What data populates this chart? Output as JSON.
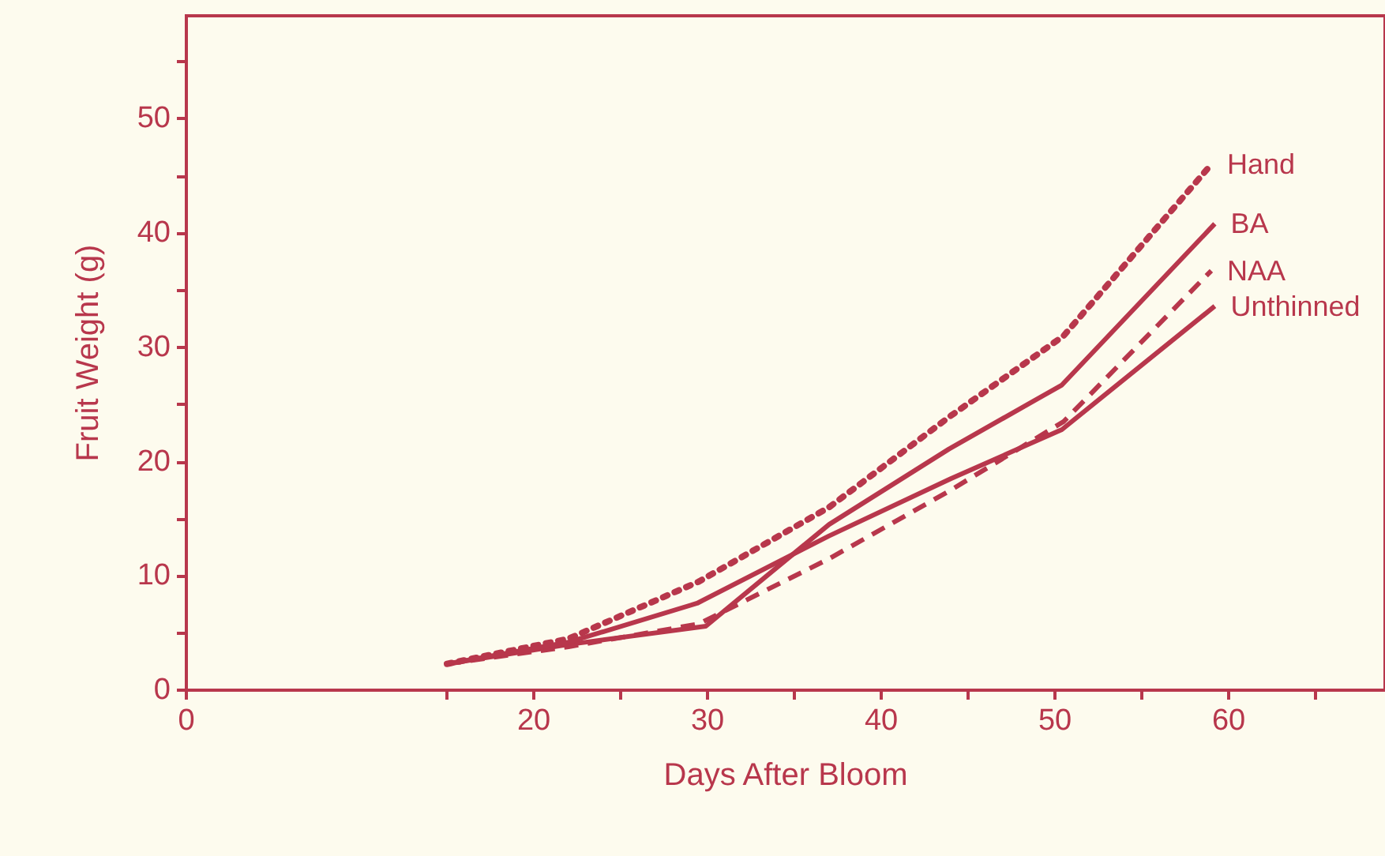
{
  "chart_data": {
    "type": "line",
    "xlabel": "Days After Bloom",
    "ylabel": "Fruit Weight (g)",
    "xlim": [
      0,
      69
    ],
    "ylim": [
      0,
      59
    ],
    "xticks": [
      0,
      {
        "value": 15,
        "label": null
      },
      20,
      {
        "value": 25,
        "label": null
      },
      30,
      {
        "value": 35,
        "label": null
      },
      40,
      {
        "value": 45,
        "label": null
      },
      50,
      {
        "value": 55,
        "label": null
      },
      60,
      {
        "value": 65,
        "label": null
      }
    ],
    "yticks": [
      0,
      {
        "value": 5,
        "label": null
      },
      10,
      {
        "value": 15,
        "label": null
      },
      20,
      {
        "value": 25,
        "label": null
      },
      30,
      {
        "value": 35,
        "label": null
      },
      40,
      {
        "value": 45,
        "label": null
      },
      50,
      {
        "value": 55,
        "label": null
      }
    ],
    "grid": false,
    "legend": false,
    "marker": "none",
    "series": [
      {
        "name": "Hand",
        "color": "#b8374c",
        "line_style": "dotted",
        "x": [
          15,
          22,
          29.5,
          37,
          44,
          50.5,
          59
        ],
        "values": [
          2.3,
          4.5,
          9.5,
          16,
          24,
          31,
          46
        ]
      },
      {
        "name": "BA",
        "color": "#b8374c",
        "line_style": "solid",
        "x": [
          15,
          22,
          29.9,
          37,
          43.9,
          50.4,
          59.2
        ],
        "values": [
          2.3,
          4,
          5.6,
          14.5,
          21.1,
          26.7,
          40.8
        ]
      },
      {
        "name": "NAA",
        "color": "#b8374c",
        "line_style": "dashed",
        "x": [
          15,
          22,
          29.5,
          37,
          44,
          50.5,
          59
        ],
        "values": [
          2.3,
          3.8,
          5.8,
          11.5,
          17.5,
          23.5,
          36.7
        ]
      },
      {
        "name": "Unthinned",
        "color": "#b8374c",
        "line_style": "solid",
        "x": [
          15,
          22,
          29.4,
          37,
          44,
          50.4,
          59.2
        ],
        "values": [
          2.3,
          4.2,
          7.6,
          13.5,
          18.5,
          22.8,
          33.6
        ]
      }
    ]
  }
}
